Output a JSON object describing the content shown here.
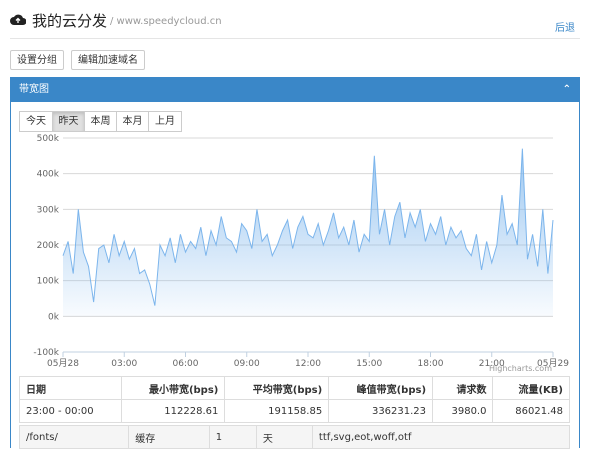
{
  "header": {
    "title": "我的云分发",
    "subtitle": "/ www.speedycloud.cn",
    "back": "后退"
  },
  "buttons": [
    "设置分组",
    "编辑加速域名"
  ],
  "panel": {
    "title": "带宽图"
  },
  "tabs": [
    "今天",
    "昨天",
    "本周",
    "本月",
    "上月"
  ],
  "chart_data": {
    "type": "area",
    "credit": "Highcharts.com",
    "x": [
      0,
      0.25,
      0.5,
      0.75,
      1,
      1.25,
      1.5,
      1.75,
      2,
      2.25,
      2.5,
      2.75,
      3,
      3.25,
      3.5,
      3.75,
      4,
      4.25,
      4.5,
      4.75,
      5,
      5.25,
      5.5,
      5.75,
      6,
      6.25,
      6.5,
      6.75,
      7,
      7.25,
      7.5,
      7.75,
      8,
      8.25,
      8.5,
      8.75,
      9,
      9.25,
      9.5,
      9.75,
      10,
      10.25,
      10.5,
      10.75,
      11,
      11.25,
      11.5,
      11.75,
      12,
      12.25,
      12.5,
      12.75,
      13,
      13.25,
      13.5,
      13.75,
      14,
      14.25,
      14.5,
      14.75,
      15,
      15.25,
      15.5,
      15.75,
      16,
      16.25,
      16.5,
      16.75,
      17,
      17.25,
      17.5,
      17.75,
      18,
      18.25,
      18.5,
      18.75,
      19,
      19.25,
      19.5,
      19.75,
      20,
      20.25,
      20.5,
      20.75,
      21,
      21.25,
      21.5,
      21.75,
      22,
      22.25,
      22.5,
      22.75,
      23,
      23.25,
      23.5,
      23.75,
      24
    ],
    "series": [
      {
        "color": "#7cb5ec",
        "values": [
          170000,
          210000,
          120000,
          300000,
          180000,
          140000,
          40000,
          190000,
          200000,
          150000,
          230000,
          170000,
          210000,
          160000,
          190000,
          120000,
          130000,
          90000,
          30000,
          200000,
          170000,
          220000,
          150000,
          230000,
          180000,
          210000,
          190000,
          250000,
          170000,
          240000,
          200000,
          280000,
          220000,
          210000,
          180000,
          260000,
          240000,
          190000,
          300000,
          210000,
          230000,
          170000,
          200000,
          240000,
          270000,
          190000,
          250000,
          280000,
          230000,
          220000,
          260000,
          200000,
          240000,
          290000,
          220000,
          250000,
          200000,
          270000,
          180000,
          230000,
          210000,
          450000,
          230000,
          300000,
          200000,
          280000,
          320000,
          220000,
          290000,
          250000,
          300000,
          210000,
          260000,
          230000,
          280000,
          200000,
          250000,
          220000,
          240000,
          190000,
          170000,
          230000,
          130000,
          210000,
          150000,
          200000,
          340000,
          230000,
          260000,
          200000,
          470000,
          160000,
          230000,
          140000,
          300000,
          120000,
          270000
        ]
      }
    ],
    "xlim": [
      0,
      24
    ],
    "xticks": [
      {
        "value": 0,
        "label": "05月28"
      },
      {
        "value": 3,
        "label": "03:00"
      },
      {
        "value": 6,
        "label": "06:00"
      },
      {
        "value": 9,
        "label": "09:00"
      },
      {
        "value": 12,
        "label": "12:00"
      },
      {
        "value": 15,
        "label": "15:00"
      },
      {
        "value": 18,
        "label": "18:00"
      },
      {
        "value": 21,
        "label": "21:00"
      },
      {
        "value": 24,
        "label": "05月29"
      }
    ],
    "ylim": [
      -100000,
      500000
    ],
    "yticks": [
      {
        "value": -100000,
        "label": "-100k"
      },
      {
        "value": 0,
        "label": "0k"
      },
      {
        "value": 100000,
        "label": "100k"
      },
      {
        "value": 200000,
        "label": "200k"
      },
      {
        "value": 300000,
        "label": "300k"
      },
      {
        "value": 400000,
        "label": "400k"
      },
      {
        "value": 500000,
        "label": "500k"
      }
    ],
    "grid": true
  },
  "table": {
    "headers": [
      "日期",
      "最小带宽(bps)",
      "平均带宽(bps)",
      "峰值带宽(bps)",
      "请求数",
      "流量(KB)"
    ],
    "rows": [
      [
        "23:00 - 00:00",
        "112228.61",
        "191158.85",
        "336231.23",
        "3980.0",
        "86021.48"
      ]
    ]
  },
  "table2": {
    "rows": [
      [
        "/fonts/",
        "缓存",
        "1",
        "天",
        "ttf,svg,eot,woff,otf"
      ]
    ]
  }
}
